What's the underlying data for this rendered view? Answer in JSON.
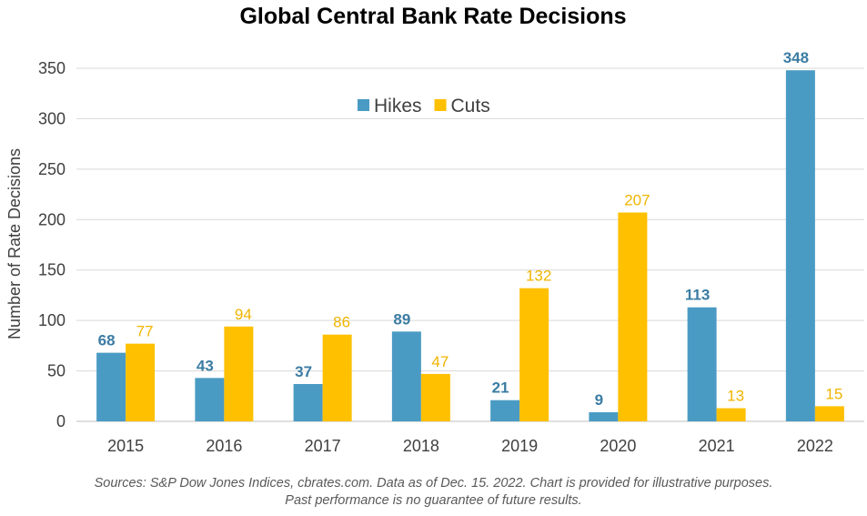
{
  "chart_data": {
    "type": "bar",
    "title": "Global Central Bank Rate Decisions",
    "xlabel": "",
    "ylabel": "Number of Rate Decisions",
    "categories": [
      "2015",
      "2016",
      "2017",
      "2018",
      "2019",
      "2020",
      "2021",
      "2022"
    ],
    "series": [
      {
        "name": "Hikes",
        "color": "#4a9bc4",
        "label_color": "#3b7ca3",
        "values": [
          68,
          43,
          37,
          89,
          21,
          9,
          113,
          348
        ]
      },
      {
        "name": "Cuts",
        "color": "#ffc000",
        "label_color": "#f0b400",
        "values": [
          77,
          94,
          86,
          47,
          132,
          207,
          13,
          15
        ]
      }
    ],
    "ylim": [
      0,
      350
    ],
    "yticks": [
      0,
      50,
      100,
      150,
      200,
      250,
      300,
      350
    ],
    "grid": true,
    "legend_position": "top-center",
    "data_labels": true
  },
  "footnote": {
    "line1": "Sources: S&P Dow Jones Indices, cbrates.com. Data as of Dec. 15. 2022. Chart is provided for illustrative purposes.",
    "line2": "Past performance is no guarantee of future results."
  }
}
